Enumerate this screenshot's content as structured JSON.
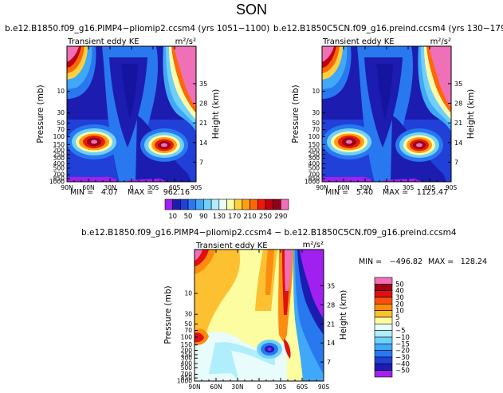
{
  "page": {
    "season": "SON"
  },
  "chart_data": [
    {
      "type": "heatmap",
      "id": "panel-pliomip2",
      "title": "b.e12.B1850.f09_g16.PIMP4−pliomip2.ccsm4 (yrs 1051−1100)",
      "subtitle": "Transient eddy KE",
      "units": "m²/s²",
      "xlabel": "",
      "ylabel": "Pressure (mb)",
      "ylabel_right": "Height (km)",
      "x_ticks": [
        "90N",
        "60N",
        "30N",
        "0",
        "30S",
        "60S",
        "90S"
      ],
      "y_ticks": [
        "10",
        "30",
        "50",
        "70",
        "100",
        "150",
        "200",
        "250",
        "300",
        "400",
        "500",
        "700",
        "850",
        "1000"
      ],
      "y_major_ticks": [
        10,
        30,
        50,
        100,
        150,
        200,
        250,
        300,
        400,
        500,
        700,
        850,
        1000
      ],
      "height_ticks": [
        "7",
        "14",
        "21",
        "28",
        "35"
      ],
      "height_values": [
        7,
        14,
        21,
        28,
        35
      ],
      "xlim": [
        90,
        -90
      ],
      "ylim": [
        1000,
        1
      ],
      "min_label": "MIN =",
      "min_value": "4.07",
      "max_label": "MAX =",
      "max_value": "962.16",
      "features": [
        {
          "lat": 45,
          "p": 250,
          "value": 290
        },
        {
          "lat": -45,
          "p": 250,
          "value": 290
        },
        {
          "lat": 75,
          "p": 5,
          "value": 290
        },
        {
          "lat": -82,
          "p": 5,
          "value": 290
        }
      ]
    },
    {
      "type": "heatmap",
      "id": "panel-preind",
      "title": "b.e12.B1850C5CN.f09_g16.preind.ccsm4 (yrs 130−179)",
      "subtitle": "Transient eddy KE",
      "units": "m²/s²",
      "xlabel": "",
      "ylabel": "Pressure (mb)",
      "ylabel_right": "Height (km)",
      "x_ticks": [
        "90N",
        "60N",
        "30N",
        "0",
        "30S",
        "60S",
        "90S"
      ],
      "y_ticks": [
        "10",
        "30",
        "50",
        "70",
        "100",
        "150",
        "200",
        "250",
        "300",
        "400",
        "500",
        "700",
        "850",
        "1000"
      ],
      "y_major_ticks": [
        10,
        30,
        50,
        100,
        150,
        200,
        250,
        300,
        400,
        500,
        700,
        850,
        1000
      ],
      "height_ticks": [
        "7",
        "14",
        "21",
        "28",
        "35"
      ],
      "height_values": [
        7,
        14,
        21,
        28,
        35
      ],
      "xlim": [
        90,
        -90
      ],
      "ylim": [
        1000,
        1
      ],
      "min_label": "MIN =",
      "min_value": "5.40",
      "max_label": "MAX =",
      "max_value": "1125.47",
      "features": [
        {
          "lat": 45,
          "p": 250,
          "value": 290
        },
        {
          "lat": -45,
          "p": 250,
          "value": 290
        },
        {
          "lat": 75,
          "p": 5,
          "value": 290
        },
        {
          "lat": -82,
          "p": 5,
          "value": 290
        }
      ]
    },
    {
      "type": "heatmap",
      "id": "panel-difference",
      "title": "b.e12.B1850.f09_g16.PIMP4−pliomip2.ccsm4 − b.e12.B1850C5CN.f09_g16.preind.ccsm4",
      "subtitle": "Transient eddy KE",
      "units": "m²/s²",
      "xlabel": "",
      "ylabel": "Pressure (mb)",
      "ylabel_right": "Height (km)",
      "x_ticks": [
        "90N",
        "60N",
        "30N",
        "0",
        "30S",
        "60S",
        "90S"
      ],
      "y_ticks": [
        "10",
        "30",
        "50",
        "70",
        "100",
        "150",
        "200",
        "250",
        "300",
        "400",
        "500",
        "700",
        "850",
        "1000"
      ],
      "y_major_ticks": [
        10,
        30,
        50,
        100,
        150,
        200,
        250,
        300,
        400,
        500,
        700,
        850,
        1000
      ],
      "height_ticks": [
        "7",
        "14",
        "21",
        "28",
        "35"
      ],
      "height_values": [
        7,
        14,
        21,
        28,
        35
      ],
      "xlim": [
        90,
        -90
      ],
      "ylim": [
        1000,
        1
      ],
      "min_label": "MIN =",
      "min_value": "−496.82",
      "max_label": "MAX =",
      "max_value": "128.24",
      "features": [
        {
          "lat": -60,
          "p": 5,
          "value": -50
        },
        {
          "lat": -52,
          "p": 5,
          "value": 50
        },
        {
          "lat": 80,
          "p": 5,
          "value": 50
        },
        {
          "lat": -30,
          "p": 300,
          "value": -40
        }
      ]
    }
  ],
  "colorbars": {
    "absolute": {
      "labels": [
        "10",
        "50",
        "90",
        "130",
        "170",
        "210",
        "250",
        "290"
      ],
      "colors": [
        "#a020f0",
        "#1c1cb0",
        "#2040d8",
        "#2878f0",
        "#40a8f8",
        "#70d0fc",
        "#b0eefc",
        "#e8fcfc",
        "#fcfca8",
        "#fcd040",
        "#fca010",
        "#fc6808",
        "#f01808",
        "#c00010",
        "#900018",
        "#f070b8"
      ]
    },
    "difference": {
      "labels": [
        "50",
        "40",
        "30",
        "20",
        "10",
        "5",
        "0",
        "−5",
        "−10",
        "−15",
        "−20",
        "−30",
        "−40",
        "−50"
      ],
      "colors": [
        "#f070b8",
        "#a00018",
        "#e01010",
        "#fc5008",
        "#fc8c10",
        "#fcc030",
        "#fcfca0",
        "#e8fcfc",
        "#b0eefc",
        "#70d0fc",
        "#40a8f8",
        "#2878f0",
        "#2040d8",
        "#1c1cb0",
        "#a020f0"
      ]
    }
  }
}
